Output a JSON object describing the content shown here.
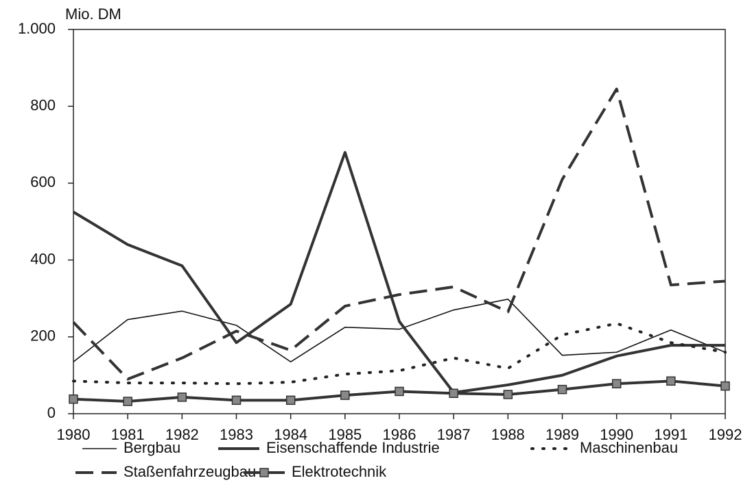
{
  "chart_data": {
    "type": "line",
    "y_label": "Mio. DM",
    "x": [
      1980,
      1981,
      1982,
      1983,
      1984,
      1985,
      1986,
      1987,
      1988,
      1989,
      1990,
      1991,
      1992
    ],
    "xlim": [
      1980,
      1992
    ],
    "xticks": [
      1980,
      1981,
      1982,
      1983,
      1984,
      1985,
      1986,
      1987,
      1988,
      1989,
      1990,
      1991,
      1992
    ],
    "ylim": [
      0,
      1000
    ],
    "yticks": [
      0,
      200,
      400,
      600,
      800,
      {
        "value": 1000,
        "label": "1.000"
      }
    ],
    "series": [
      {
        "name": "Bergbau",
        "color": "#111111",
        "style": "thin",
        "values": [
          135,
          245,
          267,
          230,
          135,
          225,
          220,
          270,
          298,
          152,
          160,
          218,
          160
        ]
      },
      {
        "name": "Eisenschaffende Industrie",
        "color": "#333333",
        "style": "thick",
        "values": [
          525,
          440,
          385,
          185,
          285,
          680,
          240,
          55,
          75,
          100,
          150,
          178,
          178
        ]
      },
      {
        "name": "Maschinenbau",
        "color": "#222222",
        "style": "dotted",
        "values": [
          85,
          80,
          80,
          78,
          82,
          103,
          112,
          145,
          118,
          205,
          235,
          185,
          160
        ]
      },
      {
        "name": "Staßenfahrzeugbau",
        "color": "#333333",
        "style": "dashed",
        "values": [
          238,
          90,
          145,
          215,
          165,
          280,
          310,
          330,
          265,
          610,
          845,
          335,
          345
        ]
      },
      {
        "name": "Elektrotechnik",
        "color": "#333333",
        "style": "square-markers",
        "values": [
          38,
          32,
          43,
          35,
          35,
          48,
          58,
          53,
          50,
          63,
          78,
          85,
          72
        ]
      }
    ]
  }
}
